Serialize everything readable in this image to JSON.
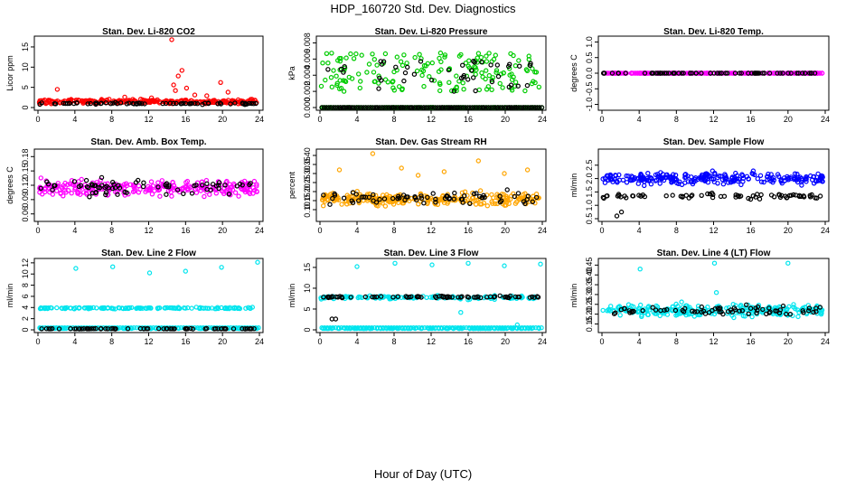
{
  "page": {
    "title": "HDP_160720  Std. Dev. Diagnostics",
    "x_axis_title": "Hour of Day (UTC)"
  },
  "chart_data": [
    {
      "type": "scatter",
      "title": "Stan. Dev. Li-820 CO2",
      "xlabel": "",
      "ylabel": "Licor ppm",
      "xlim": [
        0,
        24
      ],
      "ylim": [
        0,
        17
      ],
      "xticks": [
        "0",
        "4",
        "8",
        "12",
        "16",
        "20",
        "24"
      ],
      "yticks": [
        0,
        5,
        10,
        15
      ],
      "ytick_labels": [
        "0",
        "5",
        "10",
        "15"
      ],
      "grid": false,
      "series": [
        {
          "color": "#ff0000",
          "base": 1.5,
          "noise": 0.6,
          "extra": [
            [
              14.5,
              16.8
            ],
            [
              15.6,
              9.2
            ],
            [
              15.2,
              7.8
            ],
            [
              14.7,
              5.6
            ],
            [
              14.9,
              4.2
            ],
            [
              16.1,
              4.8
            ],
            [
              17.0,
              3.1
            ],
            [
              19.8,
              6.2
            ],
            [
              20.6,
              3.8
            ],
            [
              2.1,
              4.5
            ],
            [
              9.4,
              2.6
            ],
            [
              12.3,
              2.4
            ],
            [
              18.3,
              2.9
            ]
          ]
        },
        {
          "color": "#000000",
          "base": 1.0,
          "noise": 0.25,
          "sparse": true
        }
      ]
    },
    {
      "type": "scatter",
      "title": "Stan. Dev. Li-820 Pressure",
      "xlabel": "",
      "ylabel": "kPa",
      "xlim": [
        0,
        24
      ],
      "ylim": [
        0,
        0.0085
      ],
      "xticks": [
        "0",
        "4",
        "8",
        "12",
        "16",
        "20",
        "24"
      ],
      "yticks": [
        0,
        0.002,
        0.004,
        0.006,
        0.008
      ],
      "ytick_labels": [
        "0.000",
        "0.002",
        "0.004",
        "0.006",
        "0.008"
      ],
      "grid": false,
      "series": [
        {
          "color": "#00cc00",
          "band": [
            0.002,
            0.0068
          ],
          "zero": true
        },
        {
          "color": "#000000",
          "band": [
            0.002,
            0.0058
          ],
          "zero": true,
          "sparse": true
        }
      ]
    },
    {
      "type": "scatter",
      "title": "Stan. Dev. Li-820 Temp.",
      "xlabel": "",
      "ylabel": "degrees C",
      "xlim": [
        0,
        24
      ],
      "ylim": [
        -1.1,
        1.1
      ],
      "xticks": [
        "0",
        "4",
        "8",
        "12",
        "16",
        "20",
        "24"
      ],
      "yticks": [
        -1,
        -0.5,
        0,
        0.5,
        1
      ],
      "ytick_labels": [
        "-1.0",
        "-0.5",
        "0.0",
        "0.5",
        "1.0"
      ],
      "grid": false,
      "series": [
        {
          "color": "#ff00ff",
          "base": 0.0,
          "noise": 0.0
        },
        {
          "color": "#000000",
          "base": 0.0,
          "noise": 0.0,
          "sparse": true
        }
      ]
    },
    {
      "type": "scatter",
      "title": "Stan. Dev. Amb. Box Temp.",
      "xlabel": "",
      "ylabel": "degrees C",
      "xlim": [
        0,
        24
      ],
      "ylim": [
        0.05,
        0.19
      ],
      "xticks": [
        "0",
        "4",
        "8",
        "12",
        "16",
        "20",
        "24"
      ],
      "yticks": [
        0.06,
        0.09,
        0.12,
        0.15,
        0.18
      ],
      "ytick_labels": [
        "0.06",
        "0.09",
        "0.12",
        "0.15",
        "0.18"
      ],
      "grid": false,
      "series": [
        {
          "color": "#ff00ff",
          "base": 0.115,
          "noise": 0.022
        },
        {
          "color": "#000000",
          "base": 0.115,
          "noise": 0.018,
          "sparse": true
        }
      ]
    },
    {
      "type": "scatter",
      "title": "Stan. Dev. Gas Stream RH",
      "xlabel": "",
      "ylabel": "percent",
      "xlim": [
        0,
        24
      ],
      "ylim": [
        0.05,
        0.42
      ],
      "xticks": [
        "0",
        "4",
        "8",
        "12",
        "16",
        "20",
        "24"
      ],
      "yticks": [
        0.1,
        0.15,
        0.2,
        0.25,
        0.3,
        0.35,
        0.4
      ],
      "ytick_labels": [
        "0.10",
        "0.15",
        "0.20",
        "0.25",
        "0.30",
        "0.35",
        "0.40"
      ],
      "grid": false,
      "series": [
        {
          "color": "#ffa500",
          "base": 0.16,
          "noise": 0.04,
          "extra": [
            [
              5.7,
              0.41
            ],
            [
              2.1,
              0.32
            ],
            [
              8.8,
              0.33
            ],
            [
              13.4,
              0.31
            ],
            [
              17.1,
              0.37
            ],
            [
              22.4,
              0.32
            ],
            [
              10.6,
              0.29
            ],
            [
              19.9,
              0.3
            ]
          ]
        },
        {
          "color": "#000000",
          "base": 0.16,
          "noise": 0.05,
          "sparse": true
        }
      ]
    },
    {
      "type": "scatter",
      "title": "Stan. Dev. Sample Flow",
      "xlabel": "",
      "ylabel": "ml/min",
      "xlim": [
        0,
        24
      ],
      "ylim": [
        0.5,
        3.0
      ],
      "xticks": [
        "0",
        "4",
        "8",
        "12",
        "16",
        "20",
        "24"
      ],
      "yticks": [
        0.5,
        1.0,
        1.5,
        2.0,
        2.5
      ],
      "ytick_labels": [
        "0.5",
        "1.0",
        "1.5",
        "2.0",
        "2.5"
      ],
      "grid": false,
      "series": [
        {
          "color": "#0000ff",
          "base": 2.0,
          "noise": 0.25
        },
        {
          "color": "#000000",
          "base": 1.35,
          "noise": 0.12,
          "sparse": true,
          "extra": [
            [
              1.6,
              0.6
            ],
            [
              2.1,
              0.75
            ]
          ]
        }
      ]
    },
    {
      "type": "scatter",
      "title": "Stan. Dev. Line 2 Flow",
      "xlabel": "",
      "ylabel": "ml/min",
      "xlim": [
        0,
        24
      ],
      "ylim": [
        0,
        12.3
      ],
      "xticks": [
        "0",
        "4",
        "8",
        "12",
        "16",
        "20",
        "24"
      ],
      "yticks": [
        0,
        2,
        4,
        6,
        8,
        10,
        12
      ],
      "ytick_labels": [
        "0",
        "2",
        "4",
        "6",
        "8",
        "10",
        "12"
      ],
      "grid": false,
      "series": [
        {
          "color": "#00e5ee",
          "base": 3.9,
          "noise": 0.15,
          "zero": true,
          "extra": [
            [
              4.1,
              11.0
            ],
            [
              8.1,
              11.3
            ],
            [
              12.1,
              10.2
            ],
            [
              16.0,
              10.5
            ],
            [
              19.9,
              11.2
            ],
            [
              23.8,
              12.1
            ]
          ]
        },
        {
          "color": "#000000",
          "base": 0.2,
          "noise": 0.05,
          "sparse": true
        }
      ]
    },
    {
      "type": "scatter",
      "title": "Stan. Dev. Line 3 Flow",
      "xlabel": "",
      "ylabel": "ml/min",
      "xlim": [
        0,
        24
      ],
      "ylim": [
        0,
        16.5
      ],
      "xticks": [
        "0",
        "4",
        "8",
        "12",
        "16",
        "20",
        "24"
      ],
      "yticks": [
        0,
        5,
        10,
        15
      ],
      "ytick_labels": [
        "0",
        "5",
        "10",
        "15"
      ],
      "grid": false,
      "series": [
        {
          "color": "#00e5ee",
          "base": 7.8,
          "noise": 0.5,
          "zero": true,
          "extra": [
            [
              4.0,
              15.2
            ],
            [
              8.1,
              16.0
            ],
            [
              12.1,
              15.6
            ],
            [
              16.0,
              16.0
            ],
            [
              19.9,
              15.4
            ],
            [
              23.8,
              15.8
            ],
            [
              15.2,
              4.2
            ],
            [
              21.3,
              1.2
            ]
          ]
        },
        {
          "color": "#000000",
          "base": 7.9,
          "noise": 0.25,
          "sparse": true,
          "extra": [
            [
              1.3,
              2.6
            ],
            [
              1.7,
              2.6
            ]
          ]
        }
      ]
    },
    {
      "type": "scatter",
      "title": "Stan. Dev. Line 4 (LT) Flow",
      "xlabel": "",
      "ylabel": "ml/min",
      "xlim": [
        0,
        24
      ],
      "ylim": [
        0.12,
        0.47
      ],
      "xticks": [
        "0",
        "4",
        "8",
        "12",
        "16",
        "20",
        "24"
      ],
      "yticks": [
        0.15,
        0.2,
        0.25,
        0.3,
        0.35,
        0.4,
        0.45
      ],
      "ytick_labels": [
        "0.15",
        "0.20",
        "0.25",
        "0.30",
        "0.35",
        "0.40",
        "0.45"
      ],
      "grid": false,
      "series": [
        {
          "color": "#00e5ee",
          "base": 0.22,
          "noise": 0.035,
          "extra": [
            [
              4.1,
              0.43
            ],
            [
              12.1,
              0.46
            ],
            [
              20.0,
              0.46
            ],
            [
              12.3,
              0.31
            ]
          ]
        },
        {
          "color": "#000000",
          "base": 0.22,
          "noise": 0.03,
          "sparse": true
        }
      ]
    }
  ]
}
